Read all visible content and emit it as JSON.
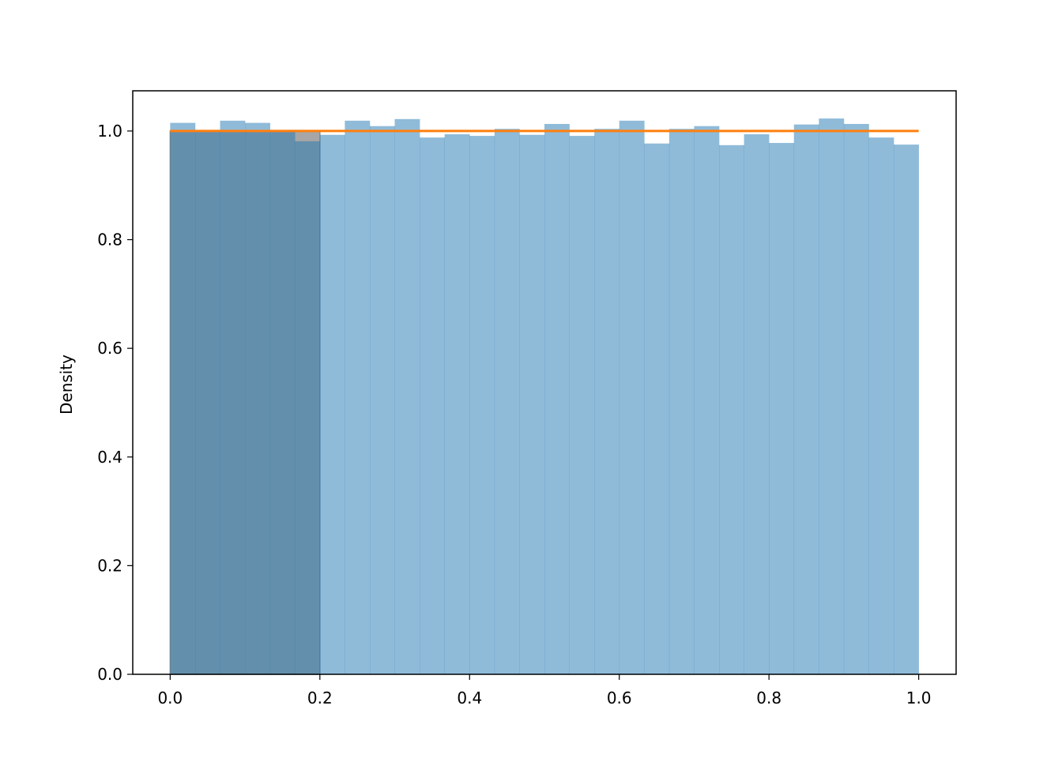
{
  "chart_data": {
    "type": "bar",
    "title": "",
    "xlabel": "",
    "ylabel": "Density",
    "xlim": [
      -0.05,
      1.05
    ],
    "ylim": [
      0,
      1.074
    ],
    "grid": false,
    "bins": {
      "start": 0.0,
      "end": 1.0,
      "count": 30
    },
    "values": [
      1.015,
      0.999,
      1.019,
      1.015,
      0.999,
      0.981,
      0.993,
      1.019,
      1.009,
      1.022,
      0.988,
      0.994,
      0.991,
      1.004,
      0.993,
      1.013,
      0.991,
      1.004,
      1.019,
      0.977,
      1.004,
      1.009,
      0.974,
      0.994,
      0.978,
      1.012,
      1.023,
      1.013,
      0.988,
      0.975
    ],
    "pdf_line": {
      "x": [
        0.0,
        1.0
      ],
      "y": [
        1.0,
        1.0
      ]
    },
    "shaded_region": {
      "x": [
        0.0,
        0.2
      ],
      "y": [
        0,
        1.0
      ]
    },
    "xticks": [
      "0.0",
      "0.2",
      "0.4",
      "0.6",
      "0.8",
      "1.0"
    ],
    "yticks": [
      "0.0",
      "0.2",
      "0.4",
      "0.6",
      "0.8",
      "1.0"
    ],
    "colors": {
      "bars": "#8fbbd9",
      "line": "#ff7f0e",
      "shade": "#a6a6a6"
    }
  }
}
